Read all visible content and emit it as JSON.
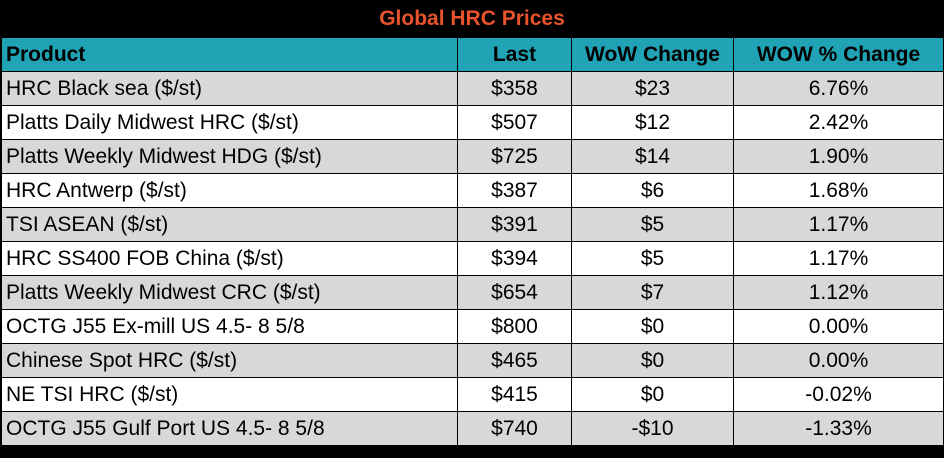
{
  "title": "Global HRC Prices",
  "columns": [
    "Product",
    "Last",
    "WoW Change",
    "WOW % Change"
  ],
  "rows": [
    {
      "product": "HRC Black sea ($/st)",
      "last": "$358",
      "wow_change": "$23",
      "wow_pct": "6.76%"
    },
    {
      "product": "Platts Daily Midwest HRC ($/st)",
      "last": "$507",
      "wow_change": "$12",
      "wow_pct": "2.42%"
    },
    {
      "product": "Platts Weekly Midwest HDG ($/st)",
      "last": "$725",
      "wow_change": "$14",
      "wow_pct": "1.90%"
    },
    {
      "product": "HRC Antwerp ($/st)",
      "last": "$387",
      "wow_change": "$6",
      "wow_pct": "1.68%"
    },
    {
      "product": "TSI ASEAN ($/st)",
      "last": "$391",
      "wow_change": "$5",
      "wow_pct": "1.17%"
    },
    {
      "product": "HRC SS400 FOB China ($/st)",
      "last": "$394",
      "wow_change": "$5",
      "wow_pct": "1.17%"
    },
    {
      "product": "Platts Weekly Midwest CRC ($/st)",
      "last": "$654",
      "wow_change": "$7",
      "wow_pct": "1.12%"
    },
    {
      "product": "OCTG J55 Ex-mill US 4.5- 8 5/8",
      "last": "$800",
      "wow_change": "$0",
      "wow_pct": "0.00%"
    },
    {
      "product": "Chinese Spot HRC ($/st)",
      "last": "$465",
      "wow_change": "$0",
      "wow_pct": "0.00%"
    },
    {
      "product": "NE TSI HRC ($/st)",
      "last": "$415",
      "wow_change": "$0",
      "wow_pct": "-0.02%"
    },
    {
      "product": "OCTG J55 Gulf Port US 4.5- 8 5/8",
      "last": "$740",
      "wow_change": "-$10",
      "wow_pct": "-1.33%"
    }
  ],
  "colors": {
    "title_text": "#e8532b",
    "title_background": "#000000",
    "header_background": "#20a3b5",
    "row_shaded": "#d8d8d8",
    "row_plain": "#ffffff"
  }
}
